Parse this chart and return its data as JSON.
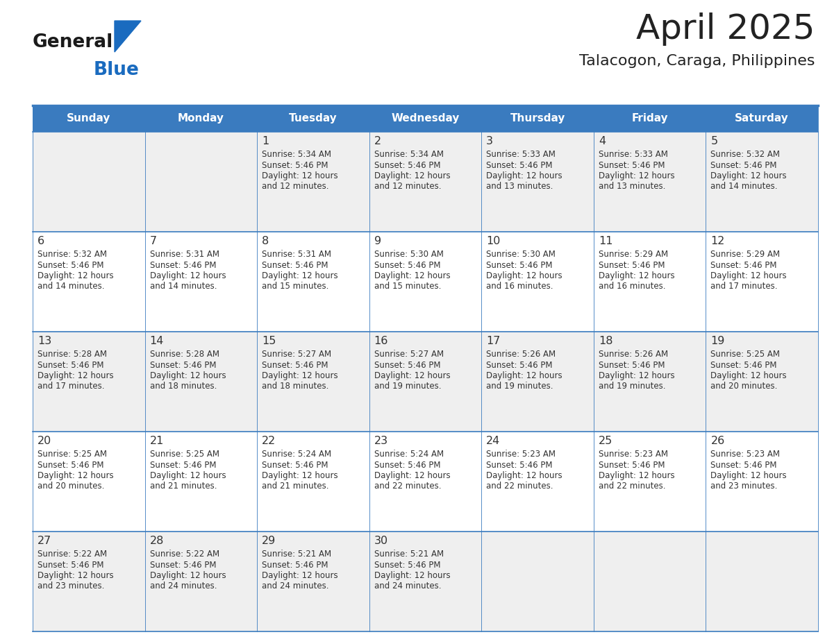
{
  "title": "April 2025",
  "subtitle": "Talacogon, Caraga, Philippines",
  "days_of_week": [
    "Sunday",
    "Monday",
    "Tuesday",
    "Wednesday",
    "Thursday",
    "Friday",
    "Saturday"
  ],
  "header_bg": "#3a7bbf",
  "header_text": "#ffffff",
  "odd_row_bg": "#efefef",
  "even_row_bg": "#ffffff",
  "border_color": "#3a7bbf",
  "text_color": "#333333",
  "title_color": "#222222",
  "calendar": [
    [
      null,
      null,
      {
        "day": 1,
        "sunrise": "5:34 AM",
        "sunset": "5:46 PM",
        "daylight": "12 hours",
        "daylight2": "and 12 minutes."
      },
      {
        "day": 2,
        "sunrise": "5:34 AM",
        "sunset": "5:46 PM",
        "daylight": "12 hours",
        "daylight2": "and 12 minutes."
      },
      {
        "day": 3,
        "sunrise": "5:33 AM",
        "sunset": "5:46 PM",
        "daylight": "12 hours",
        "daylight2": "and 13 minutes."
      },
      {
        "day": 4,
        "sunrise": "5:33 AM",
        "sunset": "5:46 PM",
        "daylight": "12 hours",
        "daylight2": "and 13 minutes."
      },
      {
        "day": 5,
        "sunrise": "5:32 AM",
        "sunset": "5:46 PM",
        "daylight": "12 hours",
        "daylight2": "and 14 minutes."
      }
    ],
    [
      {
        "day": 6,
        "sunrise": "5:32 AM",
        "sunset": "5:46 PM",
        "daylight": "12 hours",
        "daylight2": "and 14 minutes."
      },
      {
        "day": 7,
        "sunrise": "5:31 AM",
        "sunset": "5:46 PM",
        "daylight": "12 hours",
        "daylight2": "and 14 minutes."
      },
      {
        "day": 8,
        "sunrise": "5:31 AM",
        "sunset": "5:46 PM",
        "daylight": "12 hours",
        "daylight2": "and 15 minutes."
      },
      {
        "day": 9,
        "sunrise": "5:30 AM",
        "sunset": "5:46 PM",
        "daylight": "12 hours",
        "daylight2": "and 15 minutes."
      },
      {
        "day": 10,
        "sunrise": "5:30 AM",
        "sunset": "5:46 PM",
        "daylight": "12 hours",
        "daylight2": "and 16 minutes."
      },
      {
        "day": 11,
        "sunrise": "5:29 AM",
        "sunset": "5:46 PM",
        "daylight": "12 hours",
        "daylight2": "and 16 minutes."
      },
      {
        "day": 12,
        "sunrise": "5:29 AM",
        "sunset": "5:46 PM",
        "daylight": "12 hours",
        "daylight2": "and 17 minutes."
      }
    ],
    [
      {
        "day": 13,
        "sunrise": "5:28 AM",
        "sunset": "5:46 PM",
        "daylight": "12 hours",
        "daylight2": "and 17 minutes."
      },
      {
        "day": 14,
        "sunrise": "5:28 AM",
        "sunset": "5:46 PM",
        "daylight": "12 hours",
        "daylight2": "and 18 minutes."
      },
      {
        "day": 15,
        "sunrise": "5:27 AM",
        "sunset": "5:46 PM",
        "daylight": "12 hours",
        "daylight2": "and 18 minutes."
      },
      {
        "day": 16,
        "sunrise": "5:27 AM",
        "sunset": "5:46 PM",
        "daylight": "12 hours",
        "daylight2": "and 19 minutes."
      },
      {
        "day": 17,
        "sunrise": "5:26 AM",
        "sunset": "5:46 PM",
        "daylight": "12 hours",
        "daylight2": "and 19 minutes."
      },
      {
        "day": 18,
        "sunrise": "5:26 AM",
        "sunset": "5:46 PM",
        "daylight": "12 hours",
        "daylight2": "and 19 minutes."
      },
      {
        "day": 19,
        "sunrise": "5:25 AM",
        "sunset": "5:46 PM",
        "daylight": "12 hours",
        "daylight2": "and 20 minutes."
      }
    ],
    [
      {
        "day": 20,
        "sunrise": "5:25 AM",
        "sunset": "5:46 PM",
        "daylight": "12 hours",
        "daylight2": "and 20 minutes."
      },
      {
        "day": 21,
        "sunrise": "5:25 AM",
        "sunset": "5:46 PM",
        "daylight": "12 hours",
        "daylight2": "and 21 minutes."
      },
      {
        "day": 22,
        "sunrise": "5:24 AM",
        "sunset": "5:46 PM",
        "daylight": "12 hours",
        "daylight2": "and 21 minutes."
      },
      {
        "day": 23,
        "sunrise": "5:24 AM",
        "sunset": "5:46 PM",
        "daylight": "12 hours",
        "daylight2": "and 22 minutes."
      },
      {
        "day": 24,
        "sunrise": "5:23 AM",
        "sunset": "5:46 PM",
        "daylight": "12 hours",
        "daylight2": "and 22 minutes."
      },
      {
        "day": 25,
        "sunrise": "5:23 AM",
        "sunset": "5:46 PM",
        "daylight": "12 hours",
        "daylight2": "and 22 minutes."
      },
      {
        "day": 26,
        "sunrise": "5:23 AM",
        "sunset": "5:46 PM",
        "daylight": "12 hours",
        "daylight2": "and 23 minutes."
      }
    ],
    [
      {
        "day": 27,
        "sunrise": "5:22 AM",
        "sunset": "5:46 PM",
        "daylight": "12 hours",
        "daylight2": "and 23 minutes."
      },
      {
        "day": 28,
        "sunrise": "5:22 AM",
        "sunset": "5:46 PM",
        "daylight": "12 hours",
        "daylight2": "and 24 minutes."
      },
      {
        "day": 29,
        "sunrise": "5:21 AM",
        "sunset": "5:46 PM",
        "daylight": "12 hours",
        "daylight2": "and 24 minutes."
      },
      {
        "day": 30,
        "sunrise": "5:21 AM",
        "sunset": "5:46 PM",
        "daylight": "12 hours",
        "daylight2": "and 24 minutes."
      },
      null,
      null,
      null
    ]
  ],
  "logo_general_color": "#1a1a1a",
  "logo_blue_color": "#1a6bbf",
  "logo_triangle_color": "#1a6bbf",
  "fig_width": 11.88,
  "fig_height": 9.18,
  "dpi": 100
}
